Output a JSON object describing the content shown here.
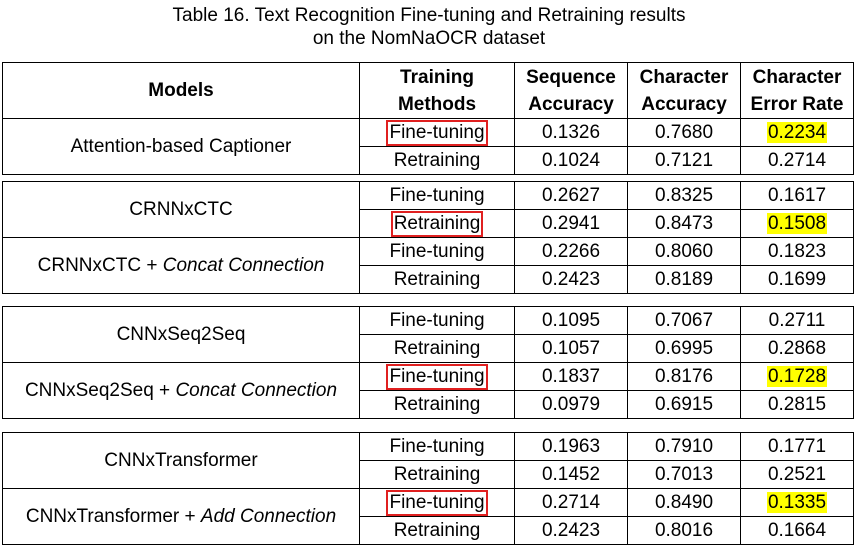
{
  "caption": {
    "line1": "Table 16. Text Recognition Fine-tuning and Retraining results",
    "line2": "on the NomNaOCR dataset"
  },
  "headers": {
    "models": "Models",
    "training_line1": "Training",
    "training_line2": "Methods",
    "seq_line1": "Sequence",
    "seq_line2": "Accuracy",
    "char_line1": "Character",
    "char_line2": "Accuracy",
    "cer_line1": "Character",
    "cer_line2": "Error Rate"
  },
  "groups": [
    {
      "models": [
        {
          "name": "Attention-based Captioner",
          "suffix": "",
          "rows": [
            {
              "method": "Fine-tuning",
              "boxed": true,
              "seq": "0.1326",
              "char": "0.7680",
              "cer": "0.2234",
              "highlight": true
            },
            {
              "method": "Retraining",
              "boxed": false,
              "seq": "0.1024",
              "char": "0.7121",
              "cer": "0.2714",
              "highlight": false
            }
          ]
        }
      ]
    },
    {
      "models": [
        {
          "name": "CRNNxCTC",
          "suffix": "",
          "rows": [
            {
              "method": "Fine-tuning",
              "boxed": false,
              "seq": "0.2627",
              "char": "0.8325",
              "cer": "0.1617",
              "highlight": false
            },
            {
              "method": "Retraining",
              "boxed": true,
              "seq": "0.2941",
              "char": "0.8473",
              "cer": "0.1508",
              "highlight": true
            }
          ]
        },
        {
          "name": "CRNNxCTC + ",
          "suffix": "Concat Connection",
          "rows": [
            {
              "method": "Fine-tuning",
              "boxed": false,
              "seq": "0.2266",
              "char": "0.8060",
              "cer": "0.1823",
              "highlight": false
            },
            {
              "method": "Retraining",
              "boxed": false,
              "seq": "0.2423",
              "char": "0.8189",
              "cer": "0.1699",
              "highlight": false
            }
          ]
        }
      ]
    },
    {
      "models": [
        {
          "name": "CNNxSeq2Seq",
          "suffix": "",
          "rows": [
            {
              "method": "Fine-tuning",
              "boxed": false,
              "seq": "0.1095",
              "char": "0.7067",
              "cer": "0.2711",
              "highlight": false
            },
            {
              "method": "Retraining",
              "boxed": false,
              "seq": "0.1057",
              "char": "0.6995",
              "cer": "0.2868",
              "highlight": false
            }
          ]
        },
        {
          "name": "CNNxSeq2Seq + ",
          "suffix": "Concat Connection",
          "rows": [
            {
              "method": "Fine-tuning",
              "boxed": true,
              "seq": "0.1837",
              "char": "0.8176",
              "cer": "0.1728",
              "highlight": true
            },
            {
              "method": "Retraining",
              "boxed": false,
              "seq": "0.0979",
              "char": "0.6915",
              "cer": "0.2815",
              "highlight": false
            }
          ]
        }
      ]
    },
    {
      "models": [
        {
          "name": "CNNxTransformer",
          "suffix": "",
          "rows": [
            {
              "method": "Fine-tuning",
              "boxed": false,
              "seq": "0.1963",
              "char": "0.7910",
              "cer": "0.1771",
              "highlight": false
            },
            {
              "method": "Retraining",
              "boxed": false,
              "seq": "0.1452",
              "char": "0.7013",
              "cer": "0.2521",
              "highlight": false
            }
          ]
        },
        {
          "name": "CNNxTransformer + ",
          "suffix": "Add Connection",
          "rows": [
            {
              "method": "Fine-tuning",
              "boxed": true,
              "seq": "0.2714",
              "char": "0.8490",
              "cer": "0.1335",
              "highlight": true
            },
            {
              "method": "Retraining",
              "boxed": false,
              "seq": "0.2423",
              "char": "0.8016",
              "cer": "0.1664",
              "highlight": false
            }
          ]
        }
      ]
    }
  ]
}
